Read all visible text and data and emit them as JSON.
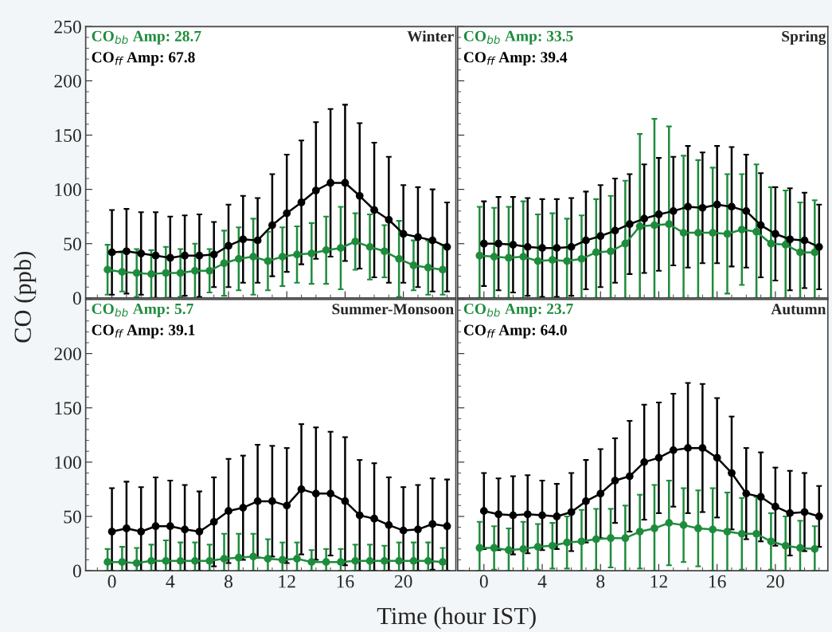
{
  "chart_data": [
    {
      "type": "line",
      "title": "Winter",
      "ylabel": "CO (ppb)",
      "xlim": [
        -1.8,
        23.6
      ],
      "ylim": [
        0,
        250
      ],
      "xticks": [
        0,
        4,
        8,
        12,
        16,
        20
      ],
      "yticks": [
        0,
        50,
        100,
        150,
        200,
        250
      ],
      "tick_labels": "y",
      "marker": "circle",
      "line_style": "solid",
      "grid": false,
      "legend": false,
      "annotations": [
        "CO$_{bb}$ Amp: 28.7",
        "CO$_{ff}$ Amp: 67.8"
      ],
      "series": [
        {
          "color": "#1e8c3c",
          "x": [
            -0.3,
            0.7,
            1.7,
            2.7,
            3.7,
            4.7,
            5.7,
            6.7,
            7.7,
            8.7,
            9.7,
            10.7,
            11.7,
            12.7,
            13.7,
            14.7,
            15.7,
            16.7,
            17.7,
            18.7,
            19.7,
            20.7,
            21.7,
            22.7
          ],
          "values": [
            26,
            24,
            23,
            22,
            23,
            23,
            25,
            25,
            32,
            36,
            38,
            34,
            38,
            40,
            41,
            44,
            46,
            52,
            47,
            43,
            36,
            30,
            28,
            26
          ],
          "errors": [
            23,
            18,
            22,
            22,
            [
              0,
              47
            ],
            22,
            25,
            20,
            30,
            29,
            35,
            27,
            27,
            26,
            28,
            31,
            38,
            26,
            30,
            24,
            35,
            23,
            25,
            23
          ]
        },
        {
          "color": "#000000",
          "x": [
            0,
            1,
            2,
            3,
            4,
            5,
            6,
            7,
            8,
            9,
            10,
            11,
            12,
            13,
            14,
            15,
            16,
            17,
            18,
            19,
            20,
            21,
            22,
            23
          ],
          "values": [
            42,
            43,
            41,
            39,
            37,
            39,
            39,
            40,
            48,
            54,
            53,
            67,
            78,
            88,
            99,
            106,
            106,
            94,
            81,
            72,
            59,
            56,
            53,
            47
          ],
          "errors": [
            39,
            39,
            38,
            [
              0,
              79
            ],
            [
              0,
              75
            ],
            37,
            38,
            30,
            38,
            40,
            39,
            47,
            54,
            57,
            63,
            68,
            72,
            67,
            62,
            58,
            45,
            46,
            47,
            41
          ]
        }
      ]
    },
    {
      "type": "line",
      "title": "Spring",
      "xlim": [
        -1.8,
        23.6
      ],
      "ylim": [
        0,
        250
      ],
      "xticks": [
        0,
        4,
        8,
        12,
        16,
        20
      ],
      "yticks": [
        0,
        50,
        100,
        150,
        200,
        250
      ],
      "tick_labels": false,
      "marker": "circle",
      "line_style": "solid",
      "grid": false,
      "legend": false,
      "annotations": [
        "CO$_{bb}$ Amp: 33.5",
        "CO$_{ff}$ Amp: 39.4"
      ],
      "series": [
        {
          "color": "#1e8c3c",
          "x": [
            -0.3,
            0.7,
            1.7,
            2.7,
            3.7,
            4.7,
            5.7,
            6.7,
            7.7,
            8.7,
            9.7,
            10.7,
            11.7,
            12.7,
            13.7,
            14.7,
            15.7,
            16.7,
            17.7,
            18.7,
            19.7,
            20.7,
            21.7,
            22.7
          ],
          "values": [
            39,
            38,
            37,
            38,
            34,
            35,
            34,
            36,
            42,
            43,
            50,
            66,
            67,
            68,
            60,
            60,
            60,
            59,
            63,
            61,
            50,
            49,
            42,
            42
          ],
          "errors": [
            [
              0,
              84
            ],
            [
              0,
              83
            ],
            [
              0,
              84
            ],
            [
              0,
              89
            ],
            [
              0,
              77
            ],
            [
              0,
              78
            ],
            [
              0,
              73
            ],
            [
              0,
              76
            ],
            [
              0,
              91
            ],
            [
              0,
              94
            ],
            [
              0,
              108
            ],
            [
              0,
              151
            ],
            [
              0,
              165
            ],
            [
              0,
              158
            ],
            [
              0,
              131
            ],
            [
              0,
              127
            ],
            60,
            55,
            51,
            [
              0,
              123
            ],
            [
              0,
              102
            ],
            [
              0,
              99
            ],
            [
              0,
              88
            ],
            [
              0,
              90
            ]
          ]
        },
        {
          "color": "#000000",
          "x": [
            0,
            1,
            2,
            3,
            4,
            5,
            6,
            7,
            8,
            9,
            10,
            11,
            12,
            13,
            14,
            15,
            16,
            17,
            18,
            19,
            20,
            21,
            22,
            23
          ],
          "values": [
            50,
            50,
            49,
            47,
            46,
            46,
            47,
            53,
            57,
            62,
            68,
            73,
            77,
            80,
            84,
            83,
            86,
            84,
            80,
            67,
            59,
            54,
            53,
            47
          ],
          "errors": [
            39,
            43,
            44,
            45,
            45,
            45,
            45,
            45,
            47,
            48,
            46,
            50,
            52,
            50,
            56,
            51,
            54,
            55,
            52,
            48,
            43,
            47,
            44,
            39
          ]
        }
      ]
    },
    {
      "type": "line",
      "title": "Summer-Monsoon",
      "xlabel": "Time (hour IST)",
      "xlim": [
        -1.8,
        23.6
      ],
      "ylim": [
        0,
        250
      ],
      "xticks": [
        0,
        4,
        8,
        12,
        16,
        20
      ],
      "yticks": [
        0,
        50,
        100,
        150,
        200,
        {
          "value": 250,
          "label": null
        }
      ],
      "marker": "circle",
      "line_style": "solid",
      "grid": false,
      "legend": false,
      "annotations": [
        "CO$_{bb}$ Amp: 5.7",
        "CO$_{ff}$ Amp: 39.1"
      ],
      "series": [
        {
          "color": "#1e8c3c",
          "x": [
            -0.3,
            0.7,
            1.7,
            2.7,
            3.7,
            4.7,
            5.7,
            6.7,
            7.7,
            8.7,
            9.7,
            10.7,
            11.7,
            12.7,
            13.7,
            14.7,
            15.7,
            16.7,
            17.7,
            18.7,
            19.7,
            20.7,
            21.7,
            22.7
          ],
          "values": [
            8,
            8,
            7,
            9,
            9,
            9,
            9,
            9,
            11,
            12,
            13,
            11,
            10,
            11,
            8,
            8,
            8,
            9,
            9,
            9,
            9,
            9,
            9,
            8
          ],
          "errors": [
            [
              0,
              20
            ],
            [
              0,
              22
            ],
            [
              0,
              21
            ],
            [
              0,
              24
            ],
            [
              0,
              28
            ],
            [
              0,
              26
            ],
            [
              0,
              26
            ],
            [
              0,
              24
            ],
            [
              0,
              34
            ],
            [
              0,
              34
            ],
            [
              0,
              34
            ],
            [
              0,
              29
            ],
            [
              0,
              26
            ],
            [
              0,
              26
            ],
            [
              0,
              19
            ],
            [
              0,
              20
            ],
            [
              0,
              20
            ],
            [
              0,
              24
            ],
            [
              0,
              24
            ],
            [
              0,
              23
            ],
            [
              0,
              26
            ],
            [
              0,
              26
            ],
            [
              0,
              26
            ],
            [
              0,
              21
            ]
          ]
        },
        {
          "color": "#000000",
          "x": [
            0,
            1,
            2,
            3,
            4,
            5,
            6,
            7,
            8,
            9,
            10,
            11,
            12,
            13,
            14,
            15,
            16,
            17,
            18,
            19,
            20,
            21,
            22,
            23
          ],
          "values": [
            36,
            39,
            36,
            41,
            41,
            38,
            36,
            45,
            55,
            58,
            64,
            64,
            60,
            75,
            71,
            71,
            64,
            51,
            48,
            42,
            37,
            38,
            43,
            41
          ],
          "errors": [
            [
              0,
              76
            ],
            [
              0,
              82
            ],
            [
              0,
              77
            ],
            [
              0,
              86
            ],
            [
              0,
              83
            ],
            [
              0,
              79
            ],
            [
              0,
              73
            ],
            41,
            48,
            48,
            52,
            51,
            53,
            60,
            61,
            57,
            59,
            51,
            [
              0,
              99
            ],
            [
              0,
              86
            ],
            [
              0,
              77
            ],
            [
              0,
              79
            ],
            42,
            [
              0,
              84
            ]
          ]
        }
      ]
    },
    {
      "type": "line",
      "title": "Autumn",
      "xlim": [
        -1.8,
        23.6
      ],
      "ylim": [
        0,
        250
      ],
      "xticks": [
        0,
        4,
        8,
        12,
        16,
        20
      ],
      "yticks": [
        0,
        50,
        100,
        150,
        200,
        250
      ],
      "tick_labels": "x",
      "marker": "circle",
      "line_style": "solid",
      "grid": false,
      "legend": false,
      "annotations": [
        "CO$_{bb}$ Amp: 23.7",
        "CO$_{ff}$ Amp: 64.0"
      ],
      "series": [
        {
          "color": "#1e8c3c",
          "x": [
            -0.3,
            0.7,
            1.7,
            2.7,
            3.7,
            4.7,
            5.7,
            6.7,
            7.7,
            8.7,
            9.7,
            10.7,
            11.7,
            12.7,
            13.7,
            14.7,
            15.7,
            16.7,
            17.7,
            18.7,
            19.7,
            20.7,
            21.7,
            22.7
          ],
          "values": [
            21,
            21,
            19,
            20,
            22,
            23,
            26,
            27,
            29,
            30,
            30,
            36,
            39,
            44,
            42,
            39,
            38,
            36,
            34,
            34,
            27,
            23,
            21,
            20
          ],
          "errors": [
            [
              0,
              45
            ],
            20,
            [
              0,
              39
            ],
            [
              0,
              45
            ],
            21,
            21,
            24,
            [
              0,
              56
            ],
            28,
            27,
            30,
            34,
            [
              0,
              79
            ],
            39,
            34,
            35,
            38,
            36,
            33,
            34,
            26,
            [
              0,
              50
            ],
            [
              0,
              46
            ],
            [
              0,
              41
            ]
          ]
        },
        {
          "color": "#000000",
          "x": [
            0,
            1,
            2,
            3,
            4,
            5,
            6,
            7,
            8,
            9,
            10,
            11,
            12,
            13,
            14,
            15,
            16,
            17,
            18,
            19,
            20,
            21,
            22,
            23
          ],
          "values": [
            55,
            52,
            51,
            52,
            51,
            50,
            54,
            64,
            71,
            83,
            87,
            100,
            104,
            111,
            113,
            113,
            104,
            90,
            71,
            68,
            59,
            53,
            54,
            50
          ],
          "errors": [
            35,
            33,
            36,
            36,
            32,
            30,
            36,
            38,
            41,
            39,
            51,
            53,
            51,
            52,
            60,
            59,
            55,
            52,
            42,
            41,
            36,
            39,
            36,
            28
          ]
        }
      ]
    }
  ]
}
